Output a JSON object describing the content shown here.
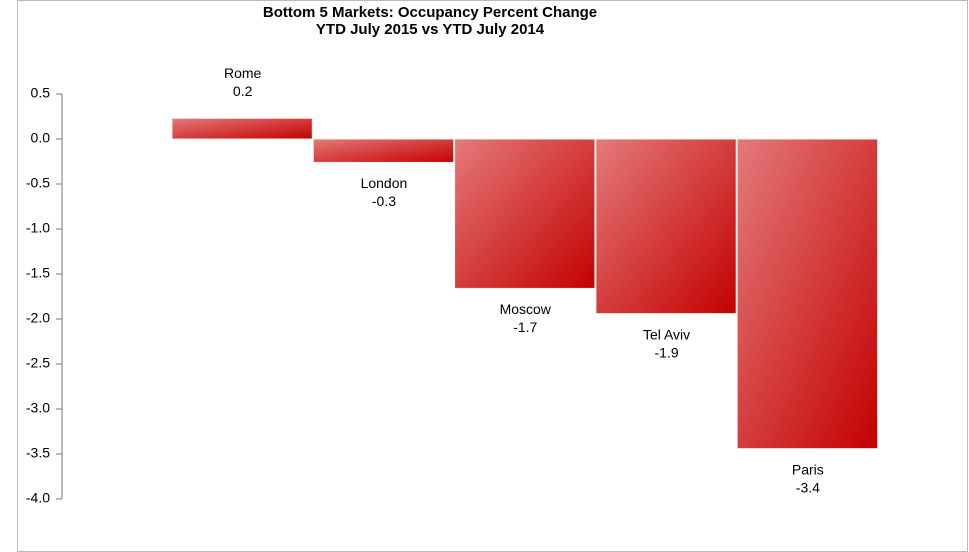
{
  "chart_data": {
    "type": "bar",
    "title": "Bottom 5 Markets: Occupancy Percent Change",
    "subtitle": "YTD July 2015 vs YTD July 2014",
    "categories": [
      "Rome",
      "London",
      "Moscow",
      "Tel Aviv",
      "Paris"
    ],
    "values": [
      0.23,
      -0.26,
      -1.66,
      -1.94,
      -3.44
    ],
    "value_labels": [
      "0.2",
      "-0.3",
      "-1.7",
      "-1.9",
      "-3.4"
    ],
    "color": "#cc0000",
    "ylim": [
      -4,
      0.5
    ],
    "yticks": [
      0.5,
      {
        "value": 0,
        "label": "0.0"
      },
      -0.5,
      {
        "value": -1,
        "label": "-1.0"
      },
      -1.5,
      {
        "value": -2,
        "label": "-2.0"
      },
      -2.5,
      {
        "value": -3,
        "label": "-3.0"
      },
      -3.5,
      {
        "value": -4,
        "label": "-4.0"
      }
    ]
  }
}
